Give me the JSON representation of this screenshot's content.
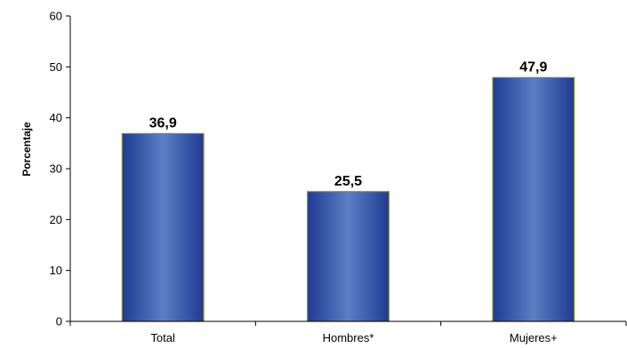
{
  "chart_data": {
    "type": "bar",
    "categories": [
      "Total",
      "Hombres*",
      "Mujeres+"
    ],
    "values": [
      36.9,
      25.5,
      47.9
    ],
    "data_labels": [
      "36,9",
      "25,5",
      "47,9"
    ],
    "ylabel": "Porcentaje",
    "xlabel": "",
    "ylim": [
      0,
      60
    ],
    "yticks": [
      0,
      10,
      20,
      30,
      40,
      50,
      60
    ],
    "grid": false,
    "legend": "none",
    "colors": {
      "bar_dark": "#1f3a93",
      "bar_light": "#5b7fc4",
      "bar_edge": "#8a8a2a",
      "axis": "#000000"
    }
  }
}
